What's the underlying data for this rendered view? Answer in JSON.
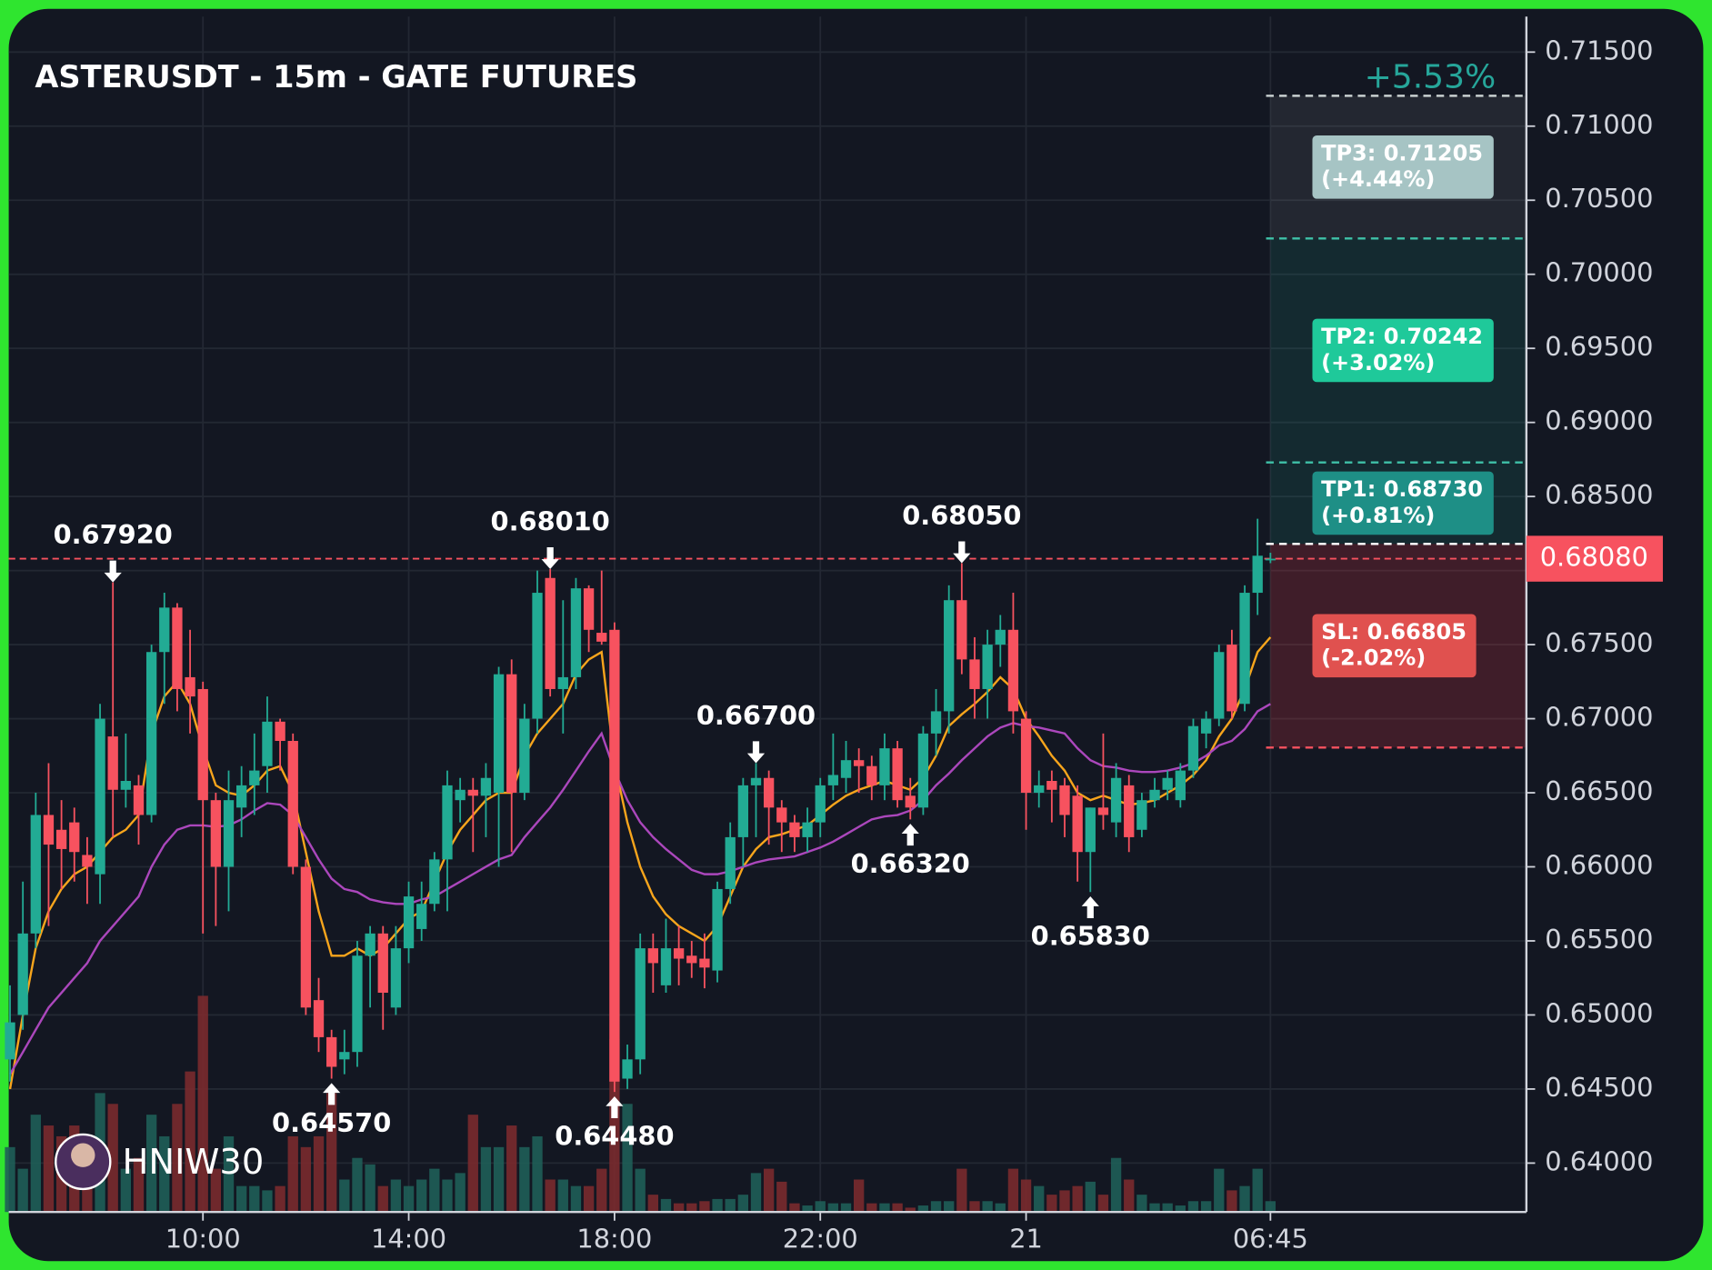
{
  "chart_data": {
    "type": "candlestick",
    "title": "ASTERUSDT - 15m - GATE FUTURES",
    "watermark": "HNIW30",
    "change_label": "+5.53%",
    "up_color": "#22ab94",
    "down_color": "#f7525f",
    "ylim": [
      0.6367,
      0.7174
    ],
    "xlim": [
      -0.1,
      117.9
    ],
    "grid": true,
    "yticks": [
      {
        "value": 0.64,
        "label": "0.64000"
      },
      {
        "value": 0.645,
        "label": "0.64500"
      },
      {
        "value": 0.65,
        "label": "0.65000"
      },
      {
        "value": 0.655,
        "label": "0.65500"
      },
      {
        "value": 0.66,
        "label": "0.66000"
      },
      {
        "value": 0.665,
        "label": "0.66500"
      },
      {
        "value": 0.67,
        "label": "0.67000"
      },
      {
        "value": 0.675,
        "label": "0.67500"
      },
      {
        "value": 0.68,
        "label": "0.68000"
      },
      {
        "value": 0.685,
        "label": "0.68500"
      },
      {
        "value": 0.69,
        "label": "0.69000"
      },
      {
        "value": 0.695,
        "label": "0.69500"
      },
      {
        "value": 0.7,
        "label": "0.70000"
      },
      {
        "value": 0.705,
        "label": "0.70500"
      },
      {
        "value": 0.71,
        "label": "0.71000"
      },
      {
        "value": 0.715,
        "label": "0.71500"
      }
    ],
    "xticks": [
      {
        "value": 15,
        "label": "10:00"
      },
      {
        "value": 31,
        "label": "14:00"
      },
      {
        "value": 47,
        "label": "18:00"
      },
      {
        "value": 63,
        "label": "22:00"
      },
      {
        "value": 79,
        "label": "21"
      },
      {
        "value": 98,
        "label": "06:45"
      }
    ],
    "candles": [
      [
        0.647,
        0.652,
        0.6455,
        0.6495
      ],
      [
        0.65,
        0.659,
        0.649,
        0.6555
      ],
      [
        0.6555,
        0.665,
        0.6545,
        0.6635
      ],
      [
        0.6635,
        0.667,
        0.656,
        0.6615
      ],
      [
        0.6625,
        0.6645,
        0.6585,
        0.6612
      ],
      [
        0.663,
        0.664,
        0.659,
        0.661
      ],
      [
        0.6608,
        0.662,
        0.6575,
        0.66
      ],
      [
        0.6595,
        0.671,
        0.6575,
        0.67
      ],
      [
        0.6688,
        0.6792,
        0.662,
        0.6652
      ],
      [
        0.6652,
        0.669,
        0.664,
        0.6658
      ],
      [
        0.6655,
        0.6662,
        0.6615,
        0.6635
      ],
      [
        0.6635,
        0.675,
        0.663,
        0.6745
      ],
      [
        0.6745,
        0.6785,
        0.671,
        0.6775
      ],
      [
        0.6775,
        0.6778,
        0.6705,
        0.672
      ],
      [
        0.6728,
        0.676,
        0.669,
        0.6715
      ],
      [
        0.672,
        0.6725,
        0.6555,
        0.6645
      ],
      [
        0.6645,
        0.665,
        0.656,
        0.66
      ],
      [
        0.66,
        0.6665,
        0.657,
        0.6645
      ],
      [
        0.664,
        0.6668,
        0.662,
        0.6655
      ],
      [
        0.6655,
        0.669,
        0.6635,
        0.6665
      ],
      [
        0.6668,
        0.6715,
        0.665,
        0.6698
      ],
      [
        0.6698,
        0.67,
        0.6665,
        0.6685
      ],
      [
        0.6685,
        0.669,
        0.6595,
        0.66
      ],
      [
        0.66,
        0.6605,
        0.65,
        0.6505
      ],
      [
        0.651,
        0.6525,
        0.6475,
        0.6485
      ],
      [
        0.6485,
        0.649,
        0.6457,
        0.6465
      ],
      [
        0.647,
        0.649,
        0.646,
        0.6475
      ],
      [
        0.6475,
        0.655,
        0.6465,
        0.654
      ],
      [
        0.654,
        0.656,
        0.6505,
        0.6555
      ],
      [
        0.6555,
        0.656,
        0.649,
        0.6515
      ],
      [
        0.6505,
        0.656,
        0.65,
        0.6545
      ],
      [
        0.6545,
        0.659,
        0.6535,
        0.658
      ],
      [
        0.6558,
        0.659,
        0.655,
        0.6575
      ],
      [
        0.6575,
        0.661,
        0.657,
        0.6605
      ],
      [
        0.6605,
        0.6665,
        0.657,
        0.6655
      ],
      [
        0.6645,
        0.666,
        0.663,
        0.6652
      ],
      [
        0.6652,
        0.666,
        0.661,
        0.6648
      ],
      [
        0.6648,
        0.667,
        0.662,
        0.666
      ],
      [
        0.665,
        0.6735,
        0.66,
        0.673
      ],
      [
        0.673,
        0.674,
        0.661,
        0.665
      ],
      [
        0.665,
        0.671,
        0.6645,
        0.67
      ],
      [
        0.67,
        0.68,
        0.669,
        0.6785
      ],
      [
        0.6795,
        0.6801,
        0.6715,
        0.672
      ],
      [
        0.672,
        0.678,
        0.669,
        0.6728
      ],
      [
        0.6728,
        0.6795,
        0.672,
        0.6788
      ],
      [
        0.6788,
        0.679,
        0.6745,
        0.676
      ],
      [
        0.6758,
        0.68,
        0.675,
        0.6752
      ],
      [
        0.676,
        0.6765,
        0.6448,
        0.6455
      ],
      [
        0.6457,
        0.648,
        0.645,
        0.647
      ],
      [
        0.647,
        0.6555,
        0.646,
        0.6545
      ],
      [
        0.6545,
        0.6555,
        0.6515,
        0.6535
      ],
      [
        0.652,
        0.6565,
        0.6515,
        0.6545
      ],
      [
        0.6545,
        0.656,
        0.652,
        0.6538
      ],
      [
        0.654,
        0.655,
        0.6525,
        0.6535
      ],
      [
        0.6538,
        0.6555,
        0.6518,
        0.6532
      ],
      [
        0.653,
        0.659,
        0.6522,
        0.6585
      ],
      [
        0.6585,
        0.663,
        0.6575,
        0.662
      ],
      [
        0.662,
        0.666,
        0.66,
        0.6655
      ],
      [
        0.6655,
        0.667,
        0.662,
        0.666
      ],
      [
        0.666,
        0.6665,
        0.6615,
        0.664
      ],
      [
        0.664,
        0.6645,
        0.661,
        0.663
      ],
      [
        0.663,
        0.6635,
        0.661,
        0.662
      ],
      [
        0.662,
        0.664,
        0.661,
        0.663
      ],
      [
        0.663,
        0.666,
        0.662,
        0.6655
      ],
      [
        0.6655,
        0.669,
        0.6645,
        0.6662
      ],
      [
        0.666,
        0.6685,
        0.665,
        0.6672
      ],
      [
        0.6672,
        0.668,
        0.665,
        0.6668
      ],
      [
        0.6668,
        0.6675,
        0.6645,
        0.6655
      ],
      [
        0.6655,
        0.669,
        0.6645,
        0.668
      ],
      [
        0.668,
        0.6685,
        0.664,
        0.6645
      ],
      [
        0.6648,
        0.666,
        0.6632,
        0.664
      ],
      [
        0.664,
        0.6695,
        0.6635,
        0.669
      ],
      [
        0.669,
        0.672,
        0.6675,
        0.6705
      ],
      [
        0.6705,
        0.679,
        0.669,
        0.678
      ],
      [
        0.678,
        0.6805,
        0.673,
        0.674
      ],
      [
        0.674,
        0.6755,
        0.67,
        0.672
      ],
      [
        0.672,
        0.676,
        0.67,
        0.675
      ],
      [
        0.675,
        0.677,
        0.6735,
        0.676
      ],
      [
        0.676,
        0.6785,
        0.669,
        0.6705
      ],
      [
        0.67,
        0.6705,
        0.6625,
        0.665
      ],
      [
        0.665,
        0.6665,
        0.664,
        0.6655
      ],
      [
        0.6658,
        0.6665,
        0.663,
        0.6652
      ],
      [
        0.6655,
        0.666,
        0.662,
        0.6635
      ],
      [
        0.6648,
        0.6655,
        0.659,
        0.661
      ],
      [
        0.661,
        0.664,
        0.6583,
        0.664
      ],
      [
        0.664,
        0.669,
        0.6625,
        0.6635
      ],
      [
        0.663,
        0.667,
        0.662,
        0.666
      ],
      [
        0.6655,
        0.6662,
        0.661,
        0.662
      ],
      [
        0.6625,
        0.665,
        0.662,
        0.6645
      ],
      [
        0.6645,
        0.666,
        0.664,
        0.6652
      ],
      [
        0.6652,
        0.6665,
        0.6645,
        0.666
      ],
      [
        0.6645,
        0.667,
        0.664,
        0.6665
      ],
      [
        0.6665,
        0.67,
        0.666,
        0.6695
      ],
      [
        0.669,
        0.6705,
        0.668,
        0.67
      ],
      [
        0.67,
        0.675,
        0.6695,
        0.6745
      ],
      [
        0.675,
        0.676,
        0.67,
        0.6705
      ],
      [
        0.671,
        0.679,
        0.6705,
        0.6785
      ],
      [
        0.6785,
        0.6835,
        0.677,
        0.681
      ],
      [
        0.6808,
        0.6812,
        0.6805,
        0.6808
      ]
    ],
    "volume": [
      30,
      20,
      45,
      40,
      35,
      40,
      35,
      55,
      50,
      20,
      25,
      45,
      35,
      50,
      65,
      100,
      20,
      35,
      12,
      12,
      10,
      12,
      35,
      30,
      35,
      55,
      15,
      25,
      22,
      12,
      15,
      12,
      15,
      20,
      15,
      18,
      45,
      30,
      30,
      40,
      30,
      35,
      15,
      15,
      12,
      12,
      20,
      80,
      50,
      20,
      8,
      6,
      4,
      4,
      5,
      6,
      6,
      8,
      18,
      20,
      14,
      4,
      3,
      5,
      4,
      4,
      15,
      4,
      4,
      4,
      2,
      3,
      5,
      5,
      20,
      5,
      5,
      4,
      20,
      15,
      12,
      8,
      10,
      12,
      14,
      8,
      25,
      15,
      8,
      4,
      4,
      3,
      5,
      5,
      20,
      10,
      12,
      20,
      5
    ],
    "moving_averages": [
      {
        "color": "#f7a51c",
        "values": [
          0.645,
          0.65,
          0.6545,
          0.657,
          0.6585,
          0.6595,
          0.66,
          0.661,
          0.662,
          0.6625,
          0.6635,
          0.669,
          0.6715,
          0.6725,
          0.671,
          0.668,
          0.6655,
          0.665,
          0.6648,
          0.6655,
          0.6665,
          0.6668,
          0.665,
          0.661,
          0.657,
          0.654,
          0.654,
          0.6545,
          0.654,
          0.6545,
          0.6555,
          0.6565,
          0.657,
          0.659,
          0.661,
          0.6625,
          0.6635,
          0.6645,
          0.665,
          0.665,
          0.6675,
          0.669,
          0.67,
          0.671,
          0.673,
          0.674,
          0.6745,
          0.667,
          0.663,
          0.66,
          0.658,
          0.6568,
          0.656,
          0.6555,
          0.655,
          0.656,
          0.658,
          0.66,
          0.6612,
          0.662,
          0.6622,
          0.6625,
          0.6628,
          0.6635,
          0.6642,
          0.6648,
          0.6652,
          0.6655,
          0.6658,
          0.6655,
          0.6652,
          0.666,
          0.6675,
          0.6695,
          0.6703,
          0.671,
          0.6718,
          0.6728,
          0.672,
          0.67,
          0.6688,
          0.6675,
          0.6665,
          0.665,
          0.6645,
          0.6648,
          0.6645,
          0.6642,
          0.6643,
          0.6645,
          0.665,
          0.6655,
          0.6662,
          0.6672,
          0.6688,
          0.67,
          0.672,
          0.6745,
          0.6755
        ]
      },
      {
        "color": "#ab47bc",
        "values": [
          0.646,
          0.6475,
          0.649,
          0.6505,
          0.6515,
          0.6525,
          0.6535,
          0.655,
          0.656,
          0.657,
          0.658,
          0.66,
          0.6615,
          0.6625,
          0.6628,
          0.6628,
          0.6627,
          0.6628,
          0.6632,
          0.6638,
          0.6643,
          0.6642,
          0.6635,
          0.662,
          0.6605,
          0.6592,
          0.6585,
          0.6583,
          0.6578,
          0.6576,
          0.6575,
          0.6575,
          0.6578,
          0.658,
          0.6585,
          0.659,
          0.6595,
          0.66,
          0.6605,
          0.6608,
          0.662,
          0.663,
          0.664,
          0.6652,
          0.6665,
          0.6678,
          0.669,
          0.6665,
          0.6645,
          0.663,
          0.662,
          0.6612,
          0.6605,
          0.6598,
          0.6595,
          0.6595,
          0.6597,
          0.66,
          0.6603,
          0.6605,
          0.6606,
          0.6607,
          0.661,
          0.6613,
          0.6617,
          0.6622,
          0.6627,
          0.6632,
          0.6634,
          0.6635,
          0.6638,
          0.6645,
          0.6655,
          0.6663,
          0.6672,
          0.668,
          0.6688,
          0.6694,
          0.6697,
          0.6695,
          0.6694,
          0.6692,
          0.669,
          0.668,
          0.6672,
          0.6668,
          0.6667,
          0.6665,
          0.6664,
          0.6664,
          0.6665,
          0.6667,
          0.667,
          0.6675,
          0.6682,
          0.6685,
          0.6693,
          0.6705,
          0.671
        ]
      }
    ],
    "annotations": [
      {
        "label": "0.67920",
        "candle": 8,
        "at": "high"
      },
      {
        "label": "0.64570",
        "candle": 25,
        "at": "low"
      },
      {
        "label": "0.68010",
        "candle": 42,
        "at": "high"
      },
      {
        "label": "0.64480",
        "candle": 47,
        "at": "low"
      },
      {
        "label": "0.66700",
        "candle": 58,
        "at": "high"
      },
      {
        "label": "0.66320",
        "candle": 70,
        "at": "low"
      },
      {
        "label": "0.68050",
        "candle": 74,
        "at": "high"
      },
      {
        "label": "0.65830",
        "candle": 84,
        "at": "low"
      }
    ],
    "entry": 0.6818,
    "levels": [
      {
        "label": "TP3: 0.71205",
        "change": "(+4.44%)",
        "value": 0.71205,
        "color": "#a6c4c4",
        "line": "#c8d0d0",
        "zone": "rgba(255,255,255,0.07)"
      },
      {
        "label": "TP2: 0.70242",
        "change": "(+3.02%)",
        "value": 0.70242,
        "color": "#1fc99a",
        "line": "#3fc1a8",
        "zone": "rgba(34,171,148,0.13)"
      },
      {
        "label": "TP1: 0.68730",
        "change": "(+0.81%)",
        "value": 0.6873,
        "color": "#1e8f86",
        "line": "#3fc1a8",
        "zone": "rgba(34,171,148,0.13)"
      },
      {
        "label": "SL: 0.66805",
        "change": "(-2.02%)",
        "value": 0.66805,
        "color": "#e0514f",
        "line": "#f7525f",
        "zone": "rgba(242,54,69,0.2)"
      }
    ],
    "last_price": {
      "value": 0.6808,
      "label": "0.68080"
    }
  }
}
